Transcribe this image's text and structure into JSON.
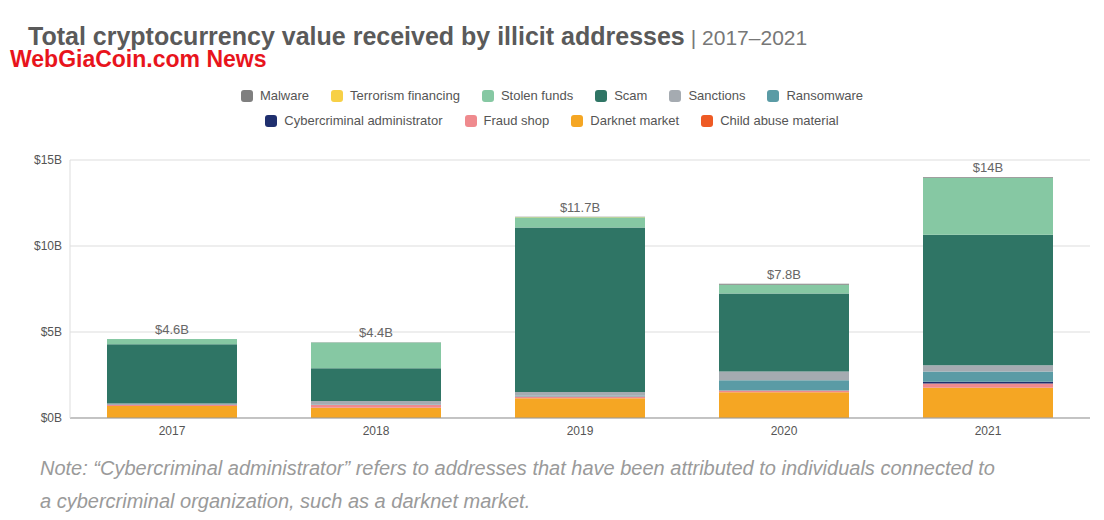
{
  "chart_data": {
    "type": "bar",
    "title": "Total cryptocurrency value received by illicit addresses",
    "subtitle": "| 2017–2021",
    "watermark": "WebGiaCoin.com News",
    "note": "Note: “Cybercriminal administrator” refers to addresses that have been attributed to individuals connected to a cybercriminal organization, such as a darknet market.",
    "stacked": true,
    "grid": true,
    "legend": "top",
    "categories": [
      "2017",
      "2018",
      "2019",
      "2020",
      "2021"
    ],
    "ylim": [
      0,
      15
    ],
    "yticks": [
      {
        "value": 0,
        "label": "$0B"
      },
      {
        "value": 5,
        "label": "$5B"
      },
      {
        "value": 10,
        "label": "$10B"
      },
      {
        "value": 15,
        "label": "$15B"
      }
    ],
    "series": [
      {
        "name": "Malware",
        "color": "#7f7f7f",
        "values": [
          0.01,
          0.01,
          0.02,
          0.05,
          0.04
        ]
      },
      {
        "name": "Terrorism financing",
        "color": "#f7d046",
        "values": [
          0,
          0,
          0.01,
          0.01,
          0
        ]
      },
      {
        "name": "Stolen funds",
        "color": "#86c8a3",
        "values": [
          0.3,
          1.5,
          0.6,
          0.5,
          3.3
        ]
      },
      {
        "name": "Scam",
        "color": "#2f7565",
        "values": [
          3.45,
          1.9,
          9.56,
          4.54,
          7.6
        ]
      },
      {
        "name": "Sanctions",
        "color": "#a5abb1",
        "values": [
          0.08,
          0.2,
          0.2,
          0.5,
          0.35
        ]
      },
      {
        "name": "Ransomware",
        "color": "#5a9ba5",
        "values": [
          0.01,
          0.04,
          0.06,
          0.6,
          0.6
        ]
      },
      {
        "name": "Cybercriminal administrator",
        "color": "#1f2f6e",
        "values": [
          0,
          0,
          0,
          0,
          0.1
        ]
      },
      {
        "name": "Fraud shop",
        "color": "#ef8a8e",
        "values": [
          0.05,
          0.15,
          0.1,
          0.1,
          0.25
        ]
      },
      {
        "name": "Darknet market",
        "color": "#f5a623",
        "values": [
          0.7,
          0.6,
          1.15,
          1.5,
          1.75
        ]
      },
      {
        "name": "Child abuse material",
        "color": "#ee5a24",
        "values": [
          0,
          0,
          0,
          0,
          0.01
        ]
      }
    ],
    "annotations": [
      {
        "category": "2017",
        "value": 4.6,
        "label": "$4.6B"
      },
      {
        "category": "2018",
        "value": 4.4,
        "label": "$4.4B"
      },
      {
        "category": "2019",
        "value": 11.7,
        "label": "$11.7B"
      },
      {
        "category": "2020",
        "value": 7.8,
        "label": "$7.8B"
      },
      {
        "category": "2021",
        "value": 14,
        "label": "$14B"
      }
    ]
  }
}
